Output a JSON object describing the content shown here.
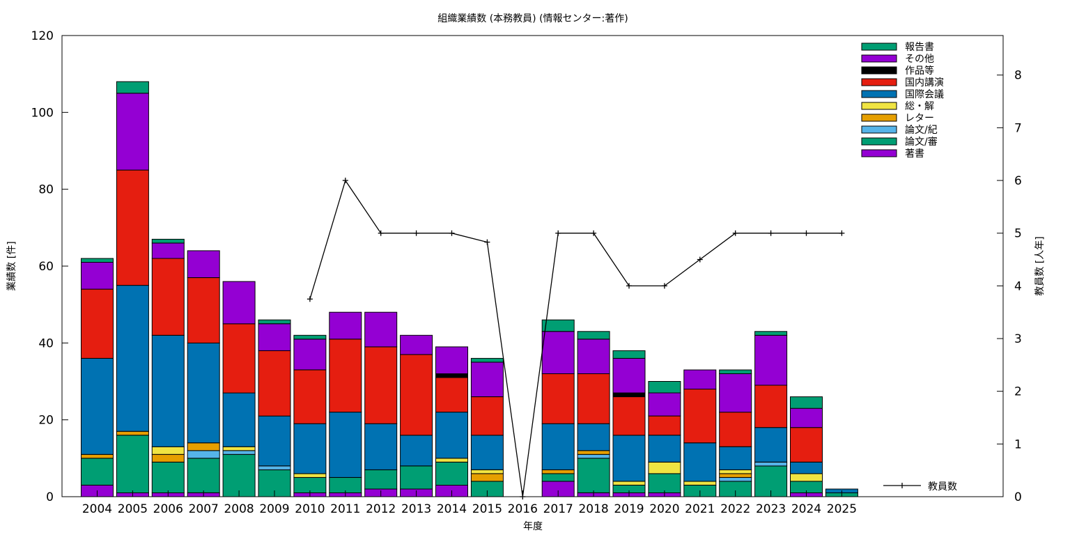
{
  "chart_data": {
    "type": "bar",
    "title": "組織業績数 (本務教員) (情報センター:著作)",
    "xlabel": "年度",
    "ylabel": "業績数 [件]",
    "y2label": "教員数 [人年]",
    "ylim": [
      0,
      120
    ],
    "y2lim": [
      0,
      8.75
    ],
    "yticks": [
      0,
      20,
      40,
      60,
      80,
      100,
      120
    ],
    "y2ticks": [
      0,
      1,
      2,
      3,
      4,
      5,
      6,
      7,
      8
    ],
    "categories": [
      "2004",
      "2005",
      "2006",
      "2007",
      "2008",
      "2009",
      "2010",
      "2011",
      "2012",
      "2013",
      "2014",
      "2015",
      "2016",
      "2017",
      "2018",
      "2019",
      "2020",
      "2021",
      "2022",
      "2023",
      "2024",
      "2025"
    ],
    "stacked": true,
    "grid": false,
    "legend_position": "top-right",
    "series": [
      {
        "name": "著書",
        "color": "#9400d3",
        "values": [
          3,
          1,
          1,
          1,
          0,
          0,
          1,
          1,
          2,
          2,
          3,
          0,
          0,
          4,
          1,
          1,
          1,
          0,
          0,
          0,
          1,
          0
        ]
      },
      {
        "name": "論文/審",
        "color": "#009e73",
        "values": [
          7,
          15,
          8,
          9,
          11,
          7,
          4,
          4,
          5,
          6,
          6,
          4,
          0,
          2,
          9,
          2,
          5,
          3,
          4,
          8,
          3,
          1
        ]
      },
      {
        "name": "論文/紀",
        "color": "#56b4e9",
        "values": [
          0,
          0,
          0,
          2,
          1,
          1,
          0,
          0,
          0,
          0,
          0,
          0,
          0,
          0,
          1,
          0,
          0,
          0,
          1,
          1,
          0,
          0
        ]
      },
      {
        "name": "レター",
        "color": "#e69f00",
        "values": [
          1,
          1,
          2,
          2,
          0,
          0,
          0,
          0,
          0,
          0,
          0,
          2,
          0,
          1,
          1,
          0,
          0,
          0,
          1,
          0,
          0,
          0
        ]
      },
      {
        "name": "総・解",
        "color": "#f0e442",
        "values": [
          0,
          0,
          2,
          0,
          1,
          0,
          1,
          0,
          0,
          0,
          1,
          1,
          0,
          0,
          0,
          1,
          3,
          1,
          1,
          0,
          2,
          0
        ]
      },
      {
        "name": "国際会議",
        "color": "#0072b2",
        "values": [
          25,
          38,
          29,
          26,
          14,
          13,
          13,
          17,
          12,
          8,
          12,
          9,
          0,
          12,
          7,
          12,
          7,
          10,
          6,
          9,
          3,
          1
        ]
      },
      {
        "name": "国内講演",
        "color": "#e51e10",
        "values": [
          18,
          30,
          20,
          17,
          18,
          17,
          14,
          19,
          20,
          21,
          9,
          10,
          0,
          13,
          13,
          10,
          5,
          14,
          9,
          11,
          9,
          0
        ]
      },
      {
        "name": "作品等",
        "color": "#000000",
        "values": [
          0,
          0,
          0,
          0,
          0,
          0,
          0,
          0,
          0,
          0,
          1,
          0,
          0,
          0,
          0,
          1,
          0,
          0,
          0,
          0,
          0,
          0
        ]
      },
      {
        "name": "その他",
        "color": "#9400d3",
        "values": [
          7,
          20,
          4,
          7,
          11,
          7,
          8,
          7,
          9,
          5,
          7,
          9,
          0,
          11,
          9,
          9,
          6,
          5,
          10,
          13,
          5,
          0
        ]
      },
      {
        "name": "報告書",
        "color": "#009e73",
        "values": [
          1,
          3,
          1,
          0,
          0,
          1,
          1,
          0,
          0,
          0,
          0,
          1,
          0,
          3,
          2,
          2,
          3,
          0,
          1,
          1,
          3,
          0
        ]
      }
    ],
    "line_series": {
      "name": "教員数",
      "axis": "y2",
      "color": "#000000",
      "x": [
        "2010",
        "2011",
        "2012",
        "2013",
        "2014",
        "2015",
        "2016",
        "2017",
        "2018",
        "2019",
        "2020",
        "2021",
        "2022",
        "2023",
        "2024",
        "2025"
      ],
      "values": [
        3.75,
        6,
        5,
        5,
        5,
        4.83,
        0,
        5,
        5,
        4,
        4,
        4.5,
        5,
        5,
        5,
        5
      ]
    }
  }
}
